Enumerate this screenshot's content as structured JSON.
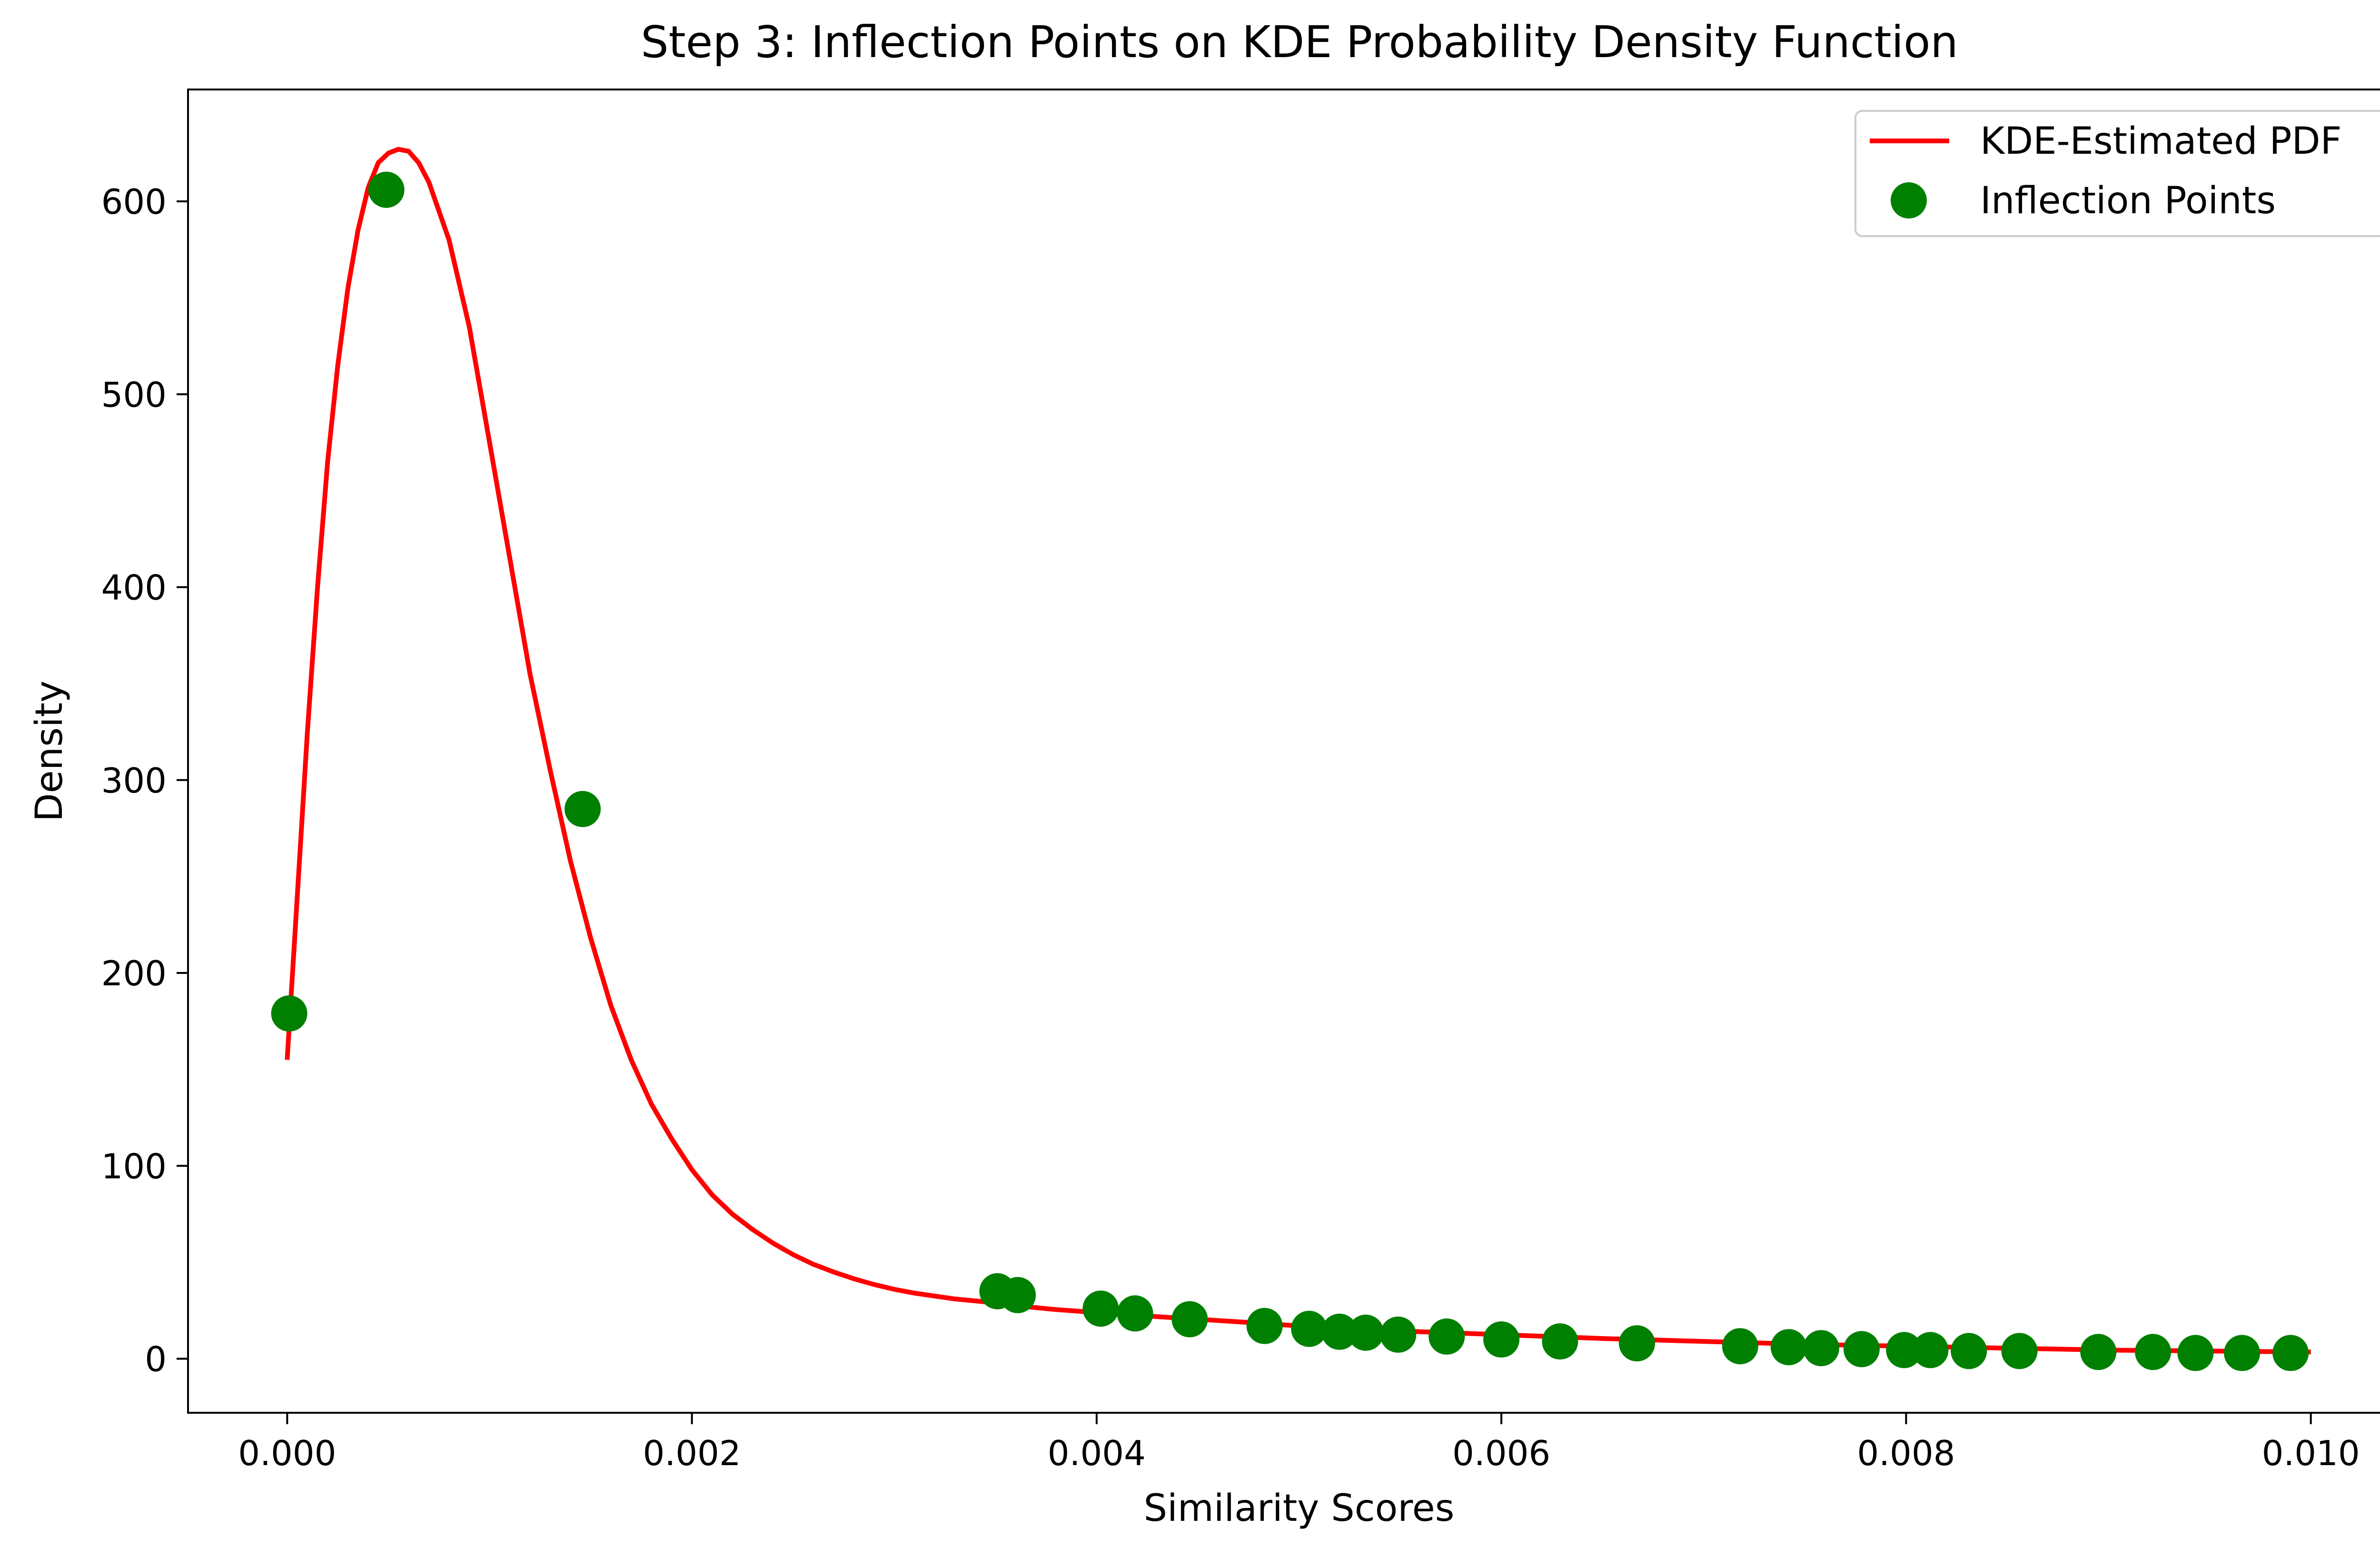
{
  "chart_data": {
    "type": "line",
    "title": "Step 3: Inflection Points on KDE Probability Density Function",
    "xlabel": "Similarity Scores",
    "ylabel": "Density",
    "xlim": [
      -0.00049,
      0.01049
    ],
    "ylim": [
      -28,
      658
    ],
    "xticks": [
      0.0,
      0.002,
      0.004,
      0.006,
      0.008,
      0.01
    ],
    "xtick_labels": [
      "0.000",
      "0.002",
      "0.004",
      "0.006",
      "0.008",
      "0.010"
    ],
    "yticks": [
      0,
      100,
      200,
      300,
      400,
      500,
      600
    ],
    "ytick_labels": [
      "0",
      "100",
      "200",
      "300",
      "400",
      "500",
      "600"
    ],
    "grid": false,
    "legend_position": "top-right",
    "series": [
      {
        "name": "KDE-Estimated PDF",
        "kind": "line",
        "color": "#ff0000",
        "x": [
          0.0,
          5e-05,
          0.0001,
          0.00015,
          0.0002,
          0.00025,
          0.0003,
          0.00035,
          0.0004,
          0.00045,
          0.0005,
          0.00055,
          0.0006,
          0.00065,
          0.0007,
          0.0008,
          0.0009,
          0.001,
          0.0011,
          0.0012,
          0.0013,
          0.0014,
          0.0015,
          0.0016,
          0.0017,
          0.0018,
          0.0019,
          0.002,
          0.0021,
          0.0022,
          0.0023,
          0.0024,
          0.0025,
          0.0026,
          0.0027,
          0.0028,
          0.0029,
          0.003,
          0.0031,
          0.0032,
          0.0033,
          0.0034,
          0.0035,
          0.0036,
          0.0038,
          0.004,
          0.0042,
          0.0045,
          0.0048,
          0.005,
          0.0053,
          0.0056,
          0.006,
          0.0065,
          0.007,
          0.0075,
          0.008,
          0.0085,
          0.009,
          0.0095,
          0.01
        ],
        "y": [
          155,
          240,
          325,
          400,
          465,
          515,
          555,
          585,
          607,
          620,
          625,
          627,
          626,
          620,
          610,
          580,
          535,
          475,
          415,
          355,
          305,
          258,
          218,
          183,
          155,
          132,
          114,
          98,
          85,
          75,
          67,
          60,
          54,
          49,
          45,
          41.5,
          38.5,
          36,
          34,
          32.5,
          31,
          30,
          29,
          27.5,
          25.5,
          24,
          22.5,
          20.5,
          18.5,
          17,
          15.5,
          14,
          12.5,
          10.5,
          9,
          7.5,
          6.5,
          5.5,
          4.5,
          4,
          3.5
        ]
      },
      {
        "name": "Inflection Points",
        "kind": "scatter",
        "color": "#008000",
        "x": [
          1e-05,
          0.00049,
          0.00146,
          0.00351,
          0.00361,
          0.00402,
          0.00419,
          0.00446,
          0.00483,
          0.00505,
          0.0052,
          0.00533,
          0.00549,
          0.00573,
          0.006,
          0.00629,
          0.00667,
          0.00718,
          0.00742,
          0.00758,
          0.00778,
          0.00799,
          0.00812,
          0.00831,
          0.00856,
          0.00895,
          0.00922,
          0.00943,
          0.00966,
          0.0099
        ],
        "y": [
          179,
          606,
          285,
          35,
          33,
          26,
          23.5,
          20.5,
          17,
          15.5,
          14,
          13.5,
          12.5,
          11.5,
          10,
          9,
          8,
          6.5,
          6,
          5.5,
          5,
          4.5,
          4.5,
          4,
          4,
          3.5,
          3.5,
          3,
          3,
          3
        ]
      }
    ]
  }
}
